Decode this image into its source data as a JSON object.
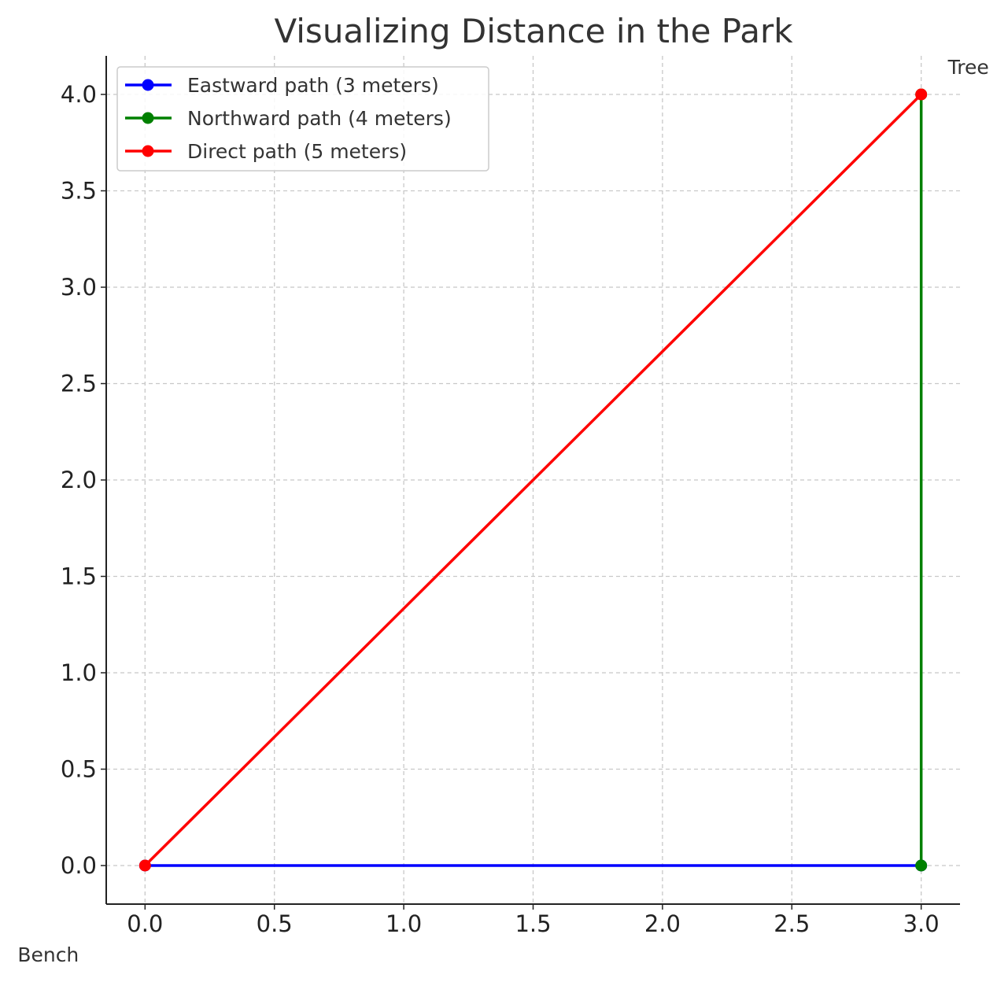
{
  "chart_data": {
    "type": "line",
    "title": "Visualizing Distance in the Park",
    "xlabel": "",
    "ylabel": "",
    "xlim": [
      -0.15,
      3.15
    ],
    "ylim": [
      -0.2,
      4.2
    ],
    "x_ticks": [
      "0.0",
      "0.5",
      "1.0",
      "1.5",
      "2.0",
      "2.5",
      "3.0"
    ],
    "x_tick_values": [
      0,
      0.5,
      1,
      1.5,
      2,
      2.5,
      3
    ],
    "y_ticks": [
      "0.0",
      "0.5",
      "1.0",
      "1.5",
      "2.0",
      "2.5",
      "3.0",
      "3.5",
      "4.0"
    ],
    "y_tick_values": [
      0,
      0.5,
      1,
      1.5,
      2,
      2.5,
      3,
      3.5,
      4
    ],
    "grid": true,
    "legend_position": "top-left",
    "series": [
      {
        "name": "Eastward path (3 meters)",
        "color": "#0000ff",
        "points": [
          [
            0,
            0
          ],
          [
            3,
            0
          ]
        ]
      },
      {
        "name": "Northward path (4 meters)",
        "color": "#008000",
        "points": [
          [
            3,
            0
          ],
          [
            3,
            4
          ]
        ]
      },
      {
        "name": "Direct path (5 meters)",
        "color": "#ff0000",
        "points": [
          [
            0,
            0
          ],
          [
            3,
            4
          ]
        ]
      }
    ],
    "annotations": [
      {
        "text": "Bench",
        "x": 0,
        "y": 0
      },
      {
        "text": "Tree",
        "x": 3,
        "y": 4
      }
    ]
  }
}
